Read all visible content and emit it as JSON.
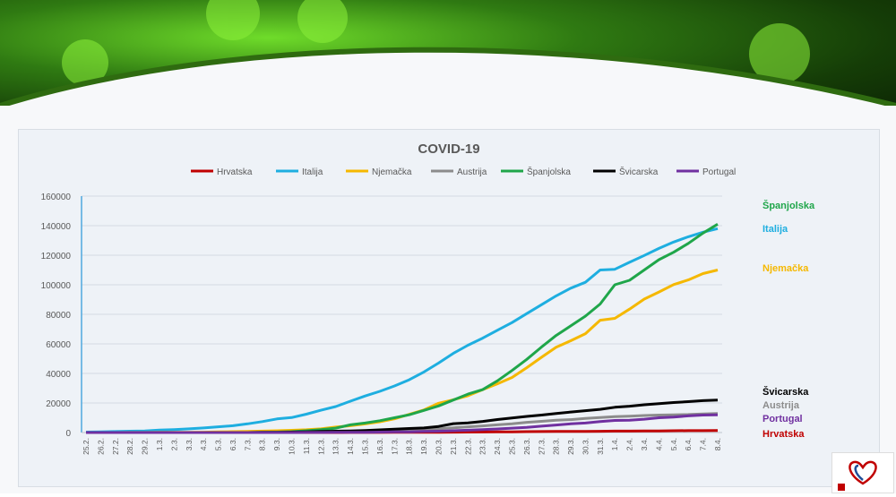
{
  "chart_data": {
    "type": "line",
    "title": "COVID-19",
    "x": [
      "25.2.",
      "26.2.",
      "27.2.",
      "28.2.",
      "29.2.",
      "1.3.",
      "2.3.",
      "3.3.",
      "4.3.",
      "5.3.",
      "6.3.",
      "7.3.",
      "8.3.",
      "9.3.",
      "10.3.",
      "11.3.",
      "12.3.",
      "13.3.",
      "14.3.",
      "15.3.",
      "16.3.",
      "17.3.",
      "18.3.",
      "19.3.",
      "20.3.",
      "21.3.",
      "22.3.",
      "23.3.",
      "24.3.",
      "25.3.",
      "26.3.",
      "27.3.",
      "28.3.",
      "29.3.",
      "30.3.",
      "31.3.",
      "1.4.",
      "2.4.",
      "3.4.",
      "4.4.",
      "5.4.",
      "6.4.",
      "7.4.",
      "8.4."
    ],
    "ylim": [
      0,
      160000
    ],
    "yticks": [
      0,
      20000,
      40000,
      60000,
      80000,
      100000,
      120000,
      140000,
      160000
    ],
    "legend_position": "top",
    "grid": true,
    "series": [
      {
        "name": "Hrvatska",
        "color": "#c00000",
        "end_label": "Hrvatska",
        "values": [
          0,
          0,
          0,
          0,
          0,
          0,
          0,
          0,
          0,
          0,
          0,
          0,
          0,
          0,
          0,
          0,
          0,
          0,
          50,
          60,
          80,
          100,
          120,
          150,
          200,
          250,
          300,
          380,
          450,
          500,
          580,
          650,
          700,
          750,
          800,
          850,
          950,
          1000,
          1050,
          1100,
          1200,
          1250,
          1300,
          1350
        ]
      },
      {
        "name": "Italija",
        "color": "#1eaee0",
        "end_label": "Italija",
        "values": [
          300,
          450,
          650,
          900,
          1100,
          1700,
          2000,
          2500,
          3100,
          3900,
          4600,
          5900,
          7400,
          9200,
          10100,
          12400,
          15100,
          17600,
          21200,
          24700,
          27900,
          31500,
          35700,
          41000,
          47000,
          53600,
          59100,
          63900,
          69200,
          74400,
          80500,
          86500,
          92500,
          97700,
          101700,
          110000,
          110500,
          115200,
          119800,
          124600,
          128900,
          132500,
          135600,
          138000
        ]
      },
      {
        "name": "Njemačka",
        "color": "#f5b800",
        "end_label": "Njemačka",
        "values": [
          0,
          0,
          0,
          50,
          70,
          100,
          150,
          200,
          250,
          400,
          600,
          800,
          1000,
          1200,
          1500,
          1900,
          2500,
          3700,
          4600,
          5800,
          7300,
          9300,
          12300,
          15300,
          19800,
          22200,
          24900,
          29000,
          33000,
          37300,
          43900,
          50900,
          57700,
          62100,
          66900,
          76000,
          77300,
          83500,
          90300,
          95100,
          100100,
          103300,
          107600,
          110000
        ]
      },
      {
        "name": "Austrija",
        "color": "#8c8c8c",
        "end_label": "Austrija",
        "values": [
          0,
          0,
          0,
          0,
          0,
          0,
          0,
          0,
          0,
          0,
          0,
          0,
          50,
          100,
          150,
          300,
          400,
          500,
          700,
          900,
          1100,
          1300,
          1600,
          2000,
          2600,
          3200,
          3900,
          4500,
          5200,
          5900,
          6900,
          7600,
          8300,
          8700,
          9600,
          10200,
          10700,
          11100,
          11500,
          11800,
          12000,
          12200,
          12600,
          12900
        ]
      },
      {
        "name": "Španjolska",
        "color": "#1fa64a",
        "end_label": "Španjolska",
        "values": [
          0,
          0,
          0,
          0,
          0,
          0,
          0,
          0,
          0,
          0,
          0,
          0,
          100,
          300,
          600,
          1200,
          2000,
          3000,
          5200,
          6400,
          8000,
          10000,
          12000,
          15000,
          18000,
          22000,
          26000,
          29000,
          35000,
          42000,
          49500,
          57800,
          65700,
          72200,
          78800,
          87000,
          100000,
          103000,
          110000,
          117000,
          122000,
          128000,
          135000,
          141000
        ]
      },
      {
        "name": "Švicarska",
        "color": "#000000",
        "end_label": "Švicarska",
        "values": [
          0,
          0,
          0,
          0,
          0,
          0,
          0,
          0,
          0,
          0,
          0,
          0,
          100,
          200,
          300,
          500,
          700,
          900,
          1100,
          1400,
          1800,
          2300,
          2700,
          3100,
          4100,
          6000,
          6500,
          7500,
          8800,
          9900,
          10900,
          11800,
          12900,
          13900,
          14800,
          15700,
          17100,
          17800,
          18800,
          19600,
          20300,
          20900,
          21600,
          22000
        ]
      },
      {
        "name": "Portugal",
        "color": "#7030a0",
        "end_label": "Portugal",
        "values": [
          0,
          0,
          0,
          0,
          0,
          0,
          0,
          0,
          0,
          0,
          0,
          0,
          0,
          0,
          0,
          50,
          80,
          100,
          150,
          200,
          300,
          400,
          500,
          700,
          900,
          1200,
          1600,
          2000,
          2400,
          3000,
          3500,
          4300,
          5100,
          5900,
          6400,
          7400,
          8200,
          8300,
          9000,
          10000,
          10500,
          11300,
          11800,
          12000
        ]
      }
    ]
  }
}
